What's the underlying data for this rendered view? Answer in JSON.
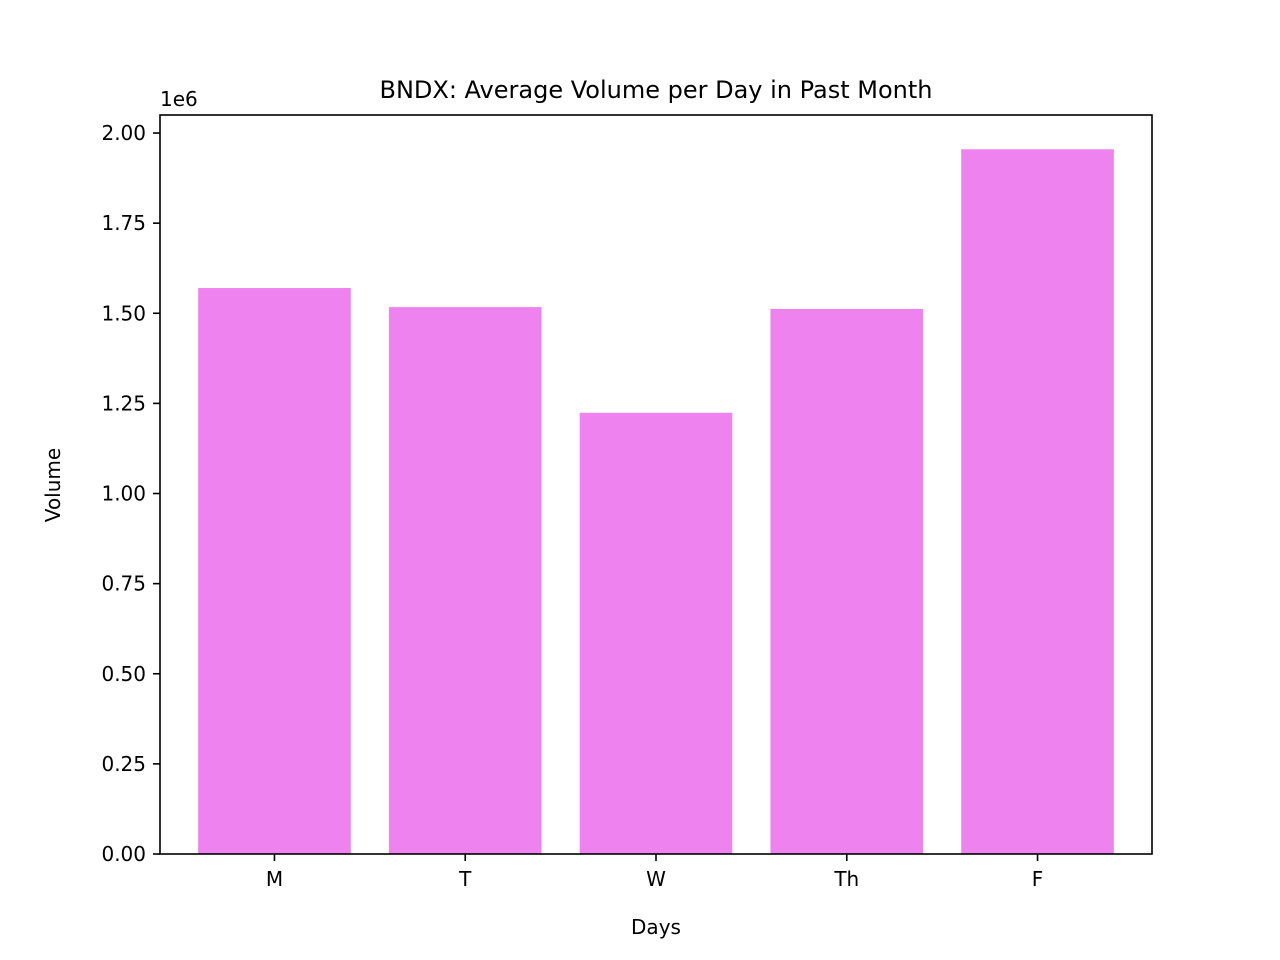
{
  "chart_data": {
    "type": "bar",
    "title": "BNDX: Average Volume per Day in Past Month",
    "xlabel": "Days",
    "ylabel": "Volume",
    "categories": [
      "M",
      "T",
      "W",
      "Th",
      "F"
    ],
    "values": [
      1570000,
      1517000,
      1224000,
      1512000,
      1955000
    ],
    "ylim": [
      0,
      2050000
    ],
    "yticks": [
      0,
      250000,
      500000,
      750000,
      1000000,
      1250000,
      1500000,
      1750000,
      2000000
    ],
    "ytick_labels": [
      "0.00",
      "0.25",
      "0.50",
      "0.75",
      "1.00",
      "1.25",
      "1.50",
      "1.75",
      "2.00"
    ],
    "y_offset_label": "1e6",
    "bar_color": "#ee82ee",
    "grid": false,
    "legend": "none"
  }
}
